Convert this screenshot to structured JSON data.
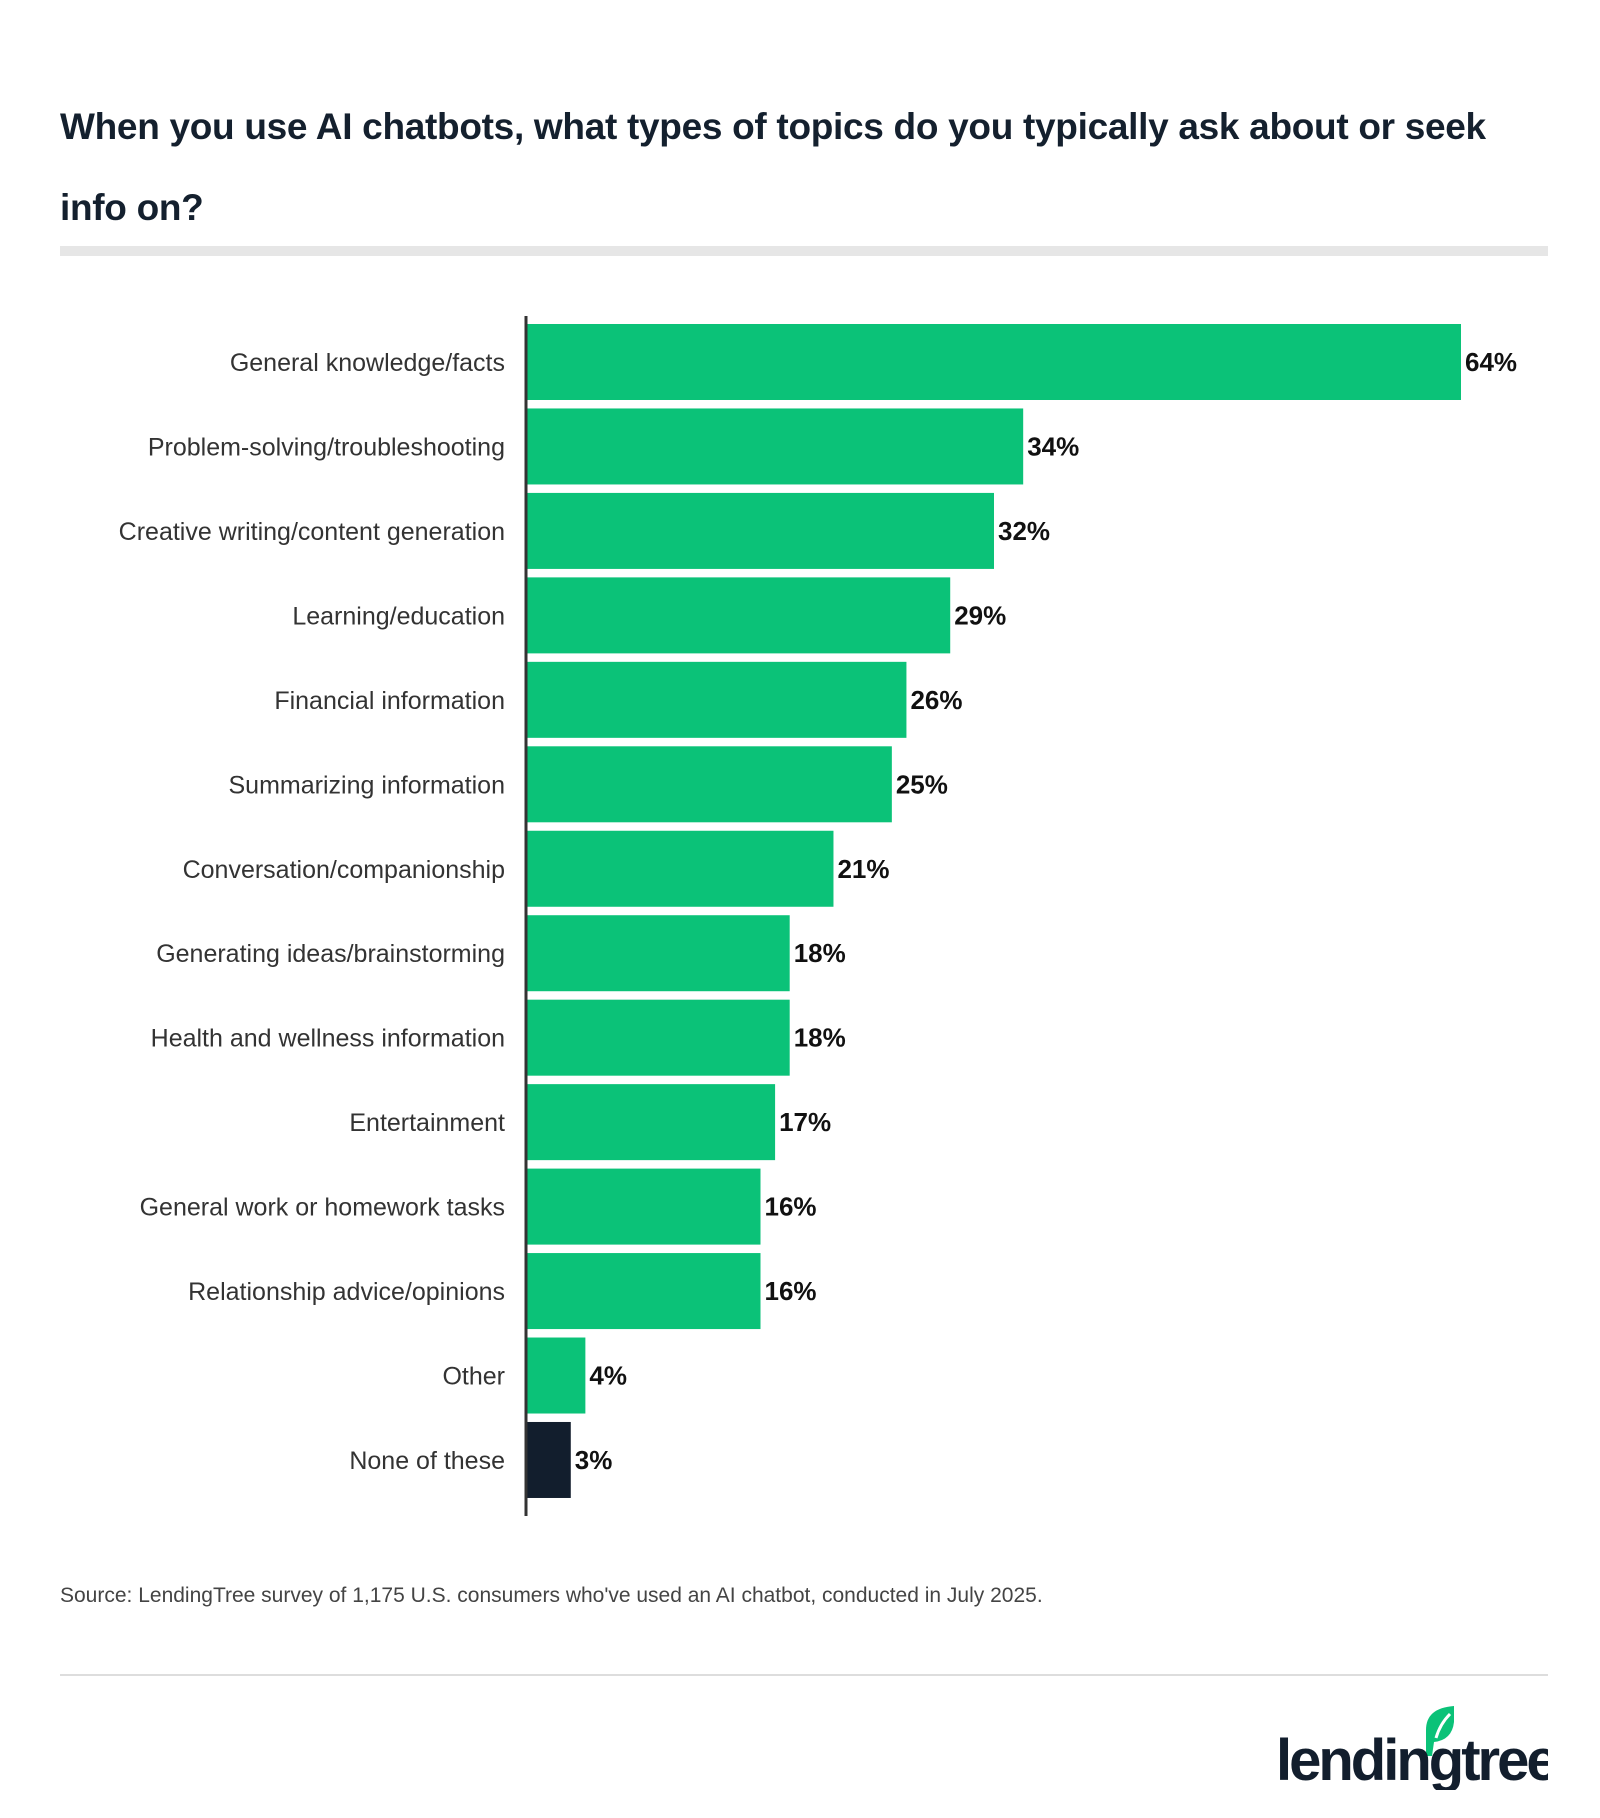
{
  "title": "When you use AI chatbots, what types of topics do you typically ask about or seek info on?",
  "source": "Source: LendingTree survey of 1,175 U.S. consumers who've used an AI chatbot, conducted in July 2025.",
  "logo_text": "lendingtree",
  "colors": {
    "primary": "#0bc278",
    "highlight": "#121e2d",
    "text": "#14202e"
  },
  "chart_data": {
    "type": "bar",
    "orientation": "horizontal",
    "title": "When you use AI chatbots, what types of topics do you typically ask about or seek info on?",
    "categories": [
      "General knowledge/facts",
      "Problem-solving/troubleshooting",
      "Creative writing/content generation",
      "Learning/education",
      "Financial information",
      "Summarizing information",
      "Conversation/companionship",
      "Generating ideas/brainstorming",
      "Health and wellness information",
      "Entertainment",
      "General work or homework tasks",
      "Relationship advice/opinions",
      "Other",
      "None of these"
    ],
    "values": [
      64,
      34,
      32,
      29,
      26,
      25,
      21,
      18,
      18,
      17,
      16,
      16,
      4,
      3
    ],
    "labels": [
      "64%",
      "34%",
      "32%",
      "29%",
      "26%",
      "25%",
      "21%",
      "18%",
      "18%",
      "17%",
      "16%",
      "16%",
      "4%",
      "3%"
    ],
    "bar_colors": [
      "#0bc278",
      "#0bc278",
      "#0bc278",
      "#0bc278",
      "#0bc278",
      "#0bc278",
      "#0bc278",
      "#0bc278",
      "#0bc278",
      "#0bc278",
      "#0bc278",
      "#0bc278",
      "#0bc278",
      "#121e2d"
    ],
    "xlim": [
      0,
      64
    ],
    "grid": false,
    "legend": "none"
  }
}
